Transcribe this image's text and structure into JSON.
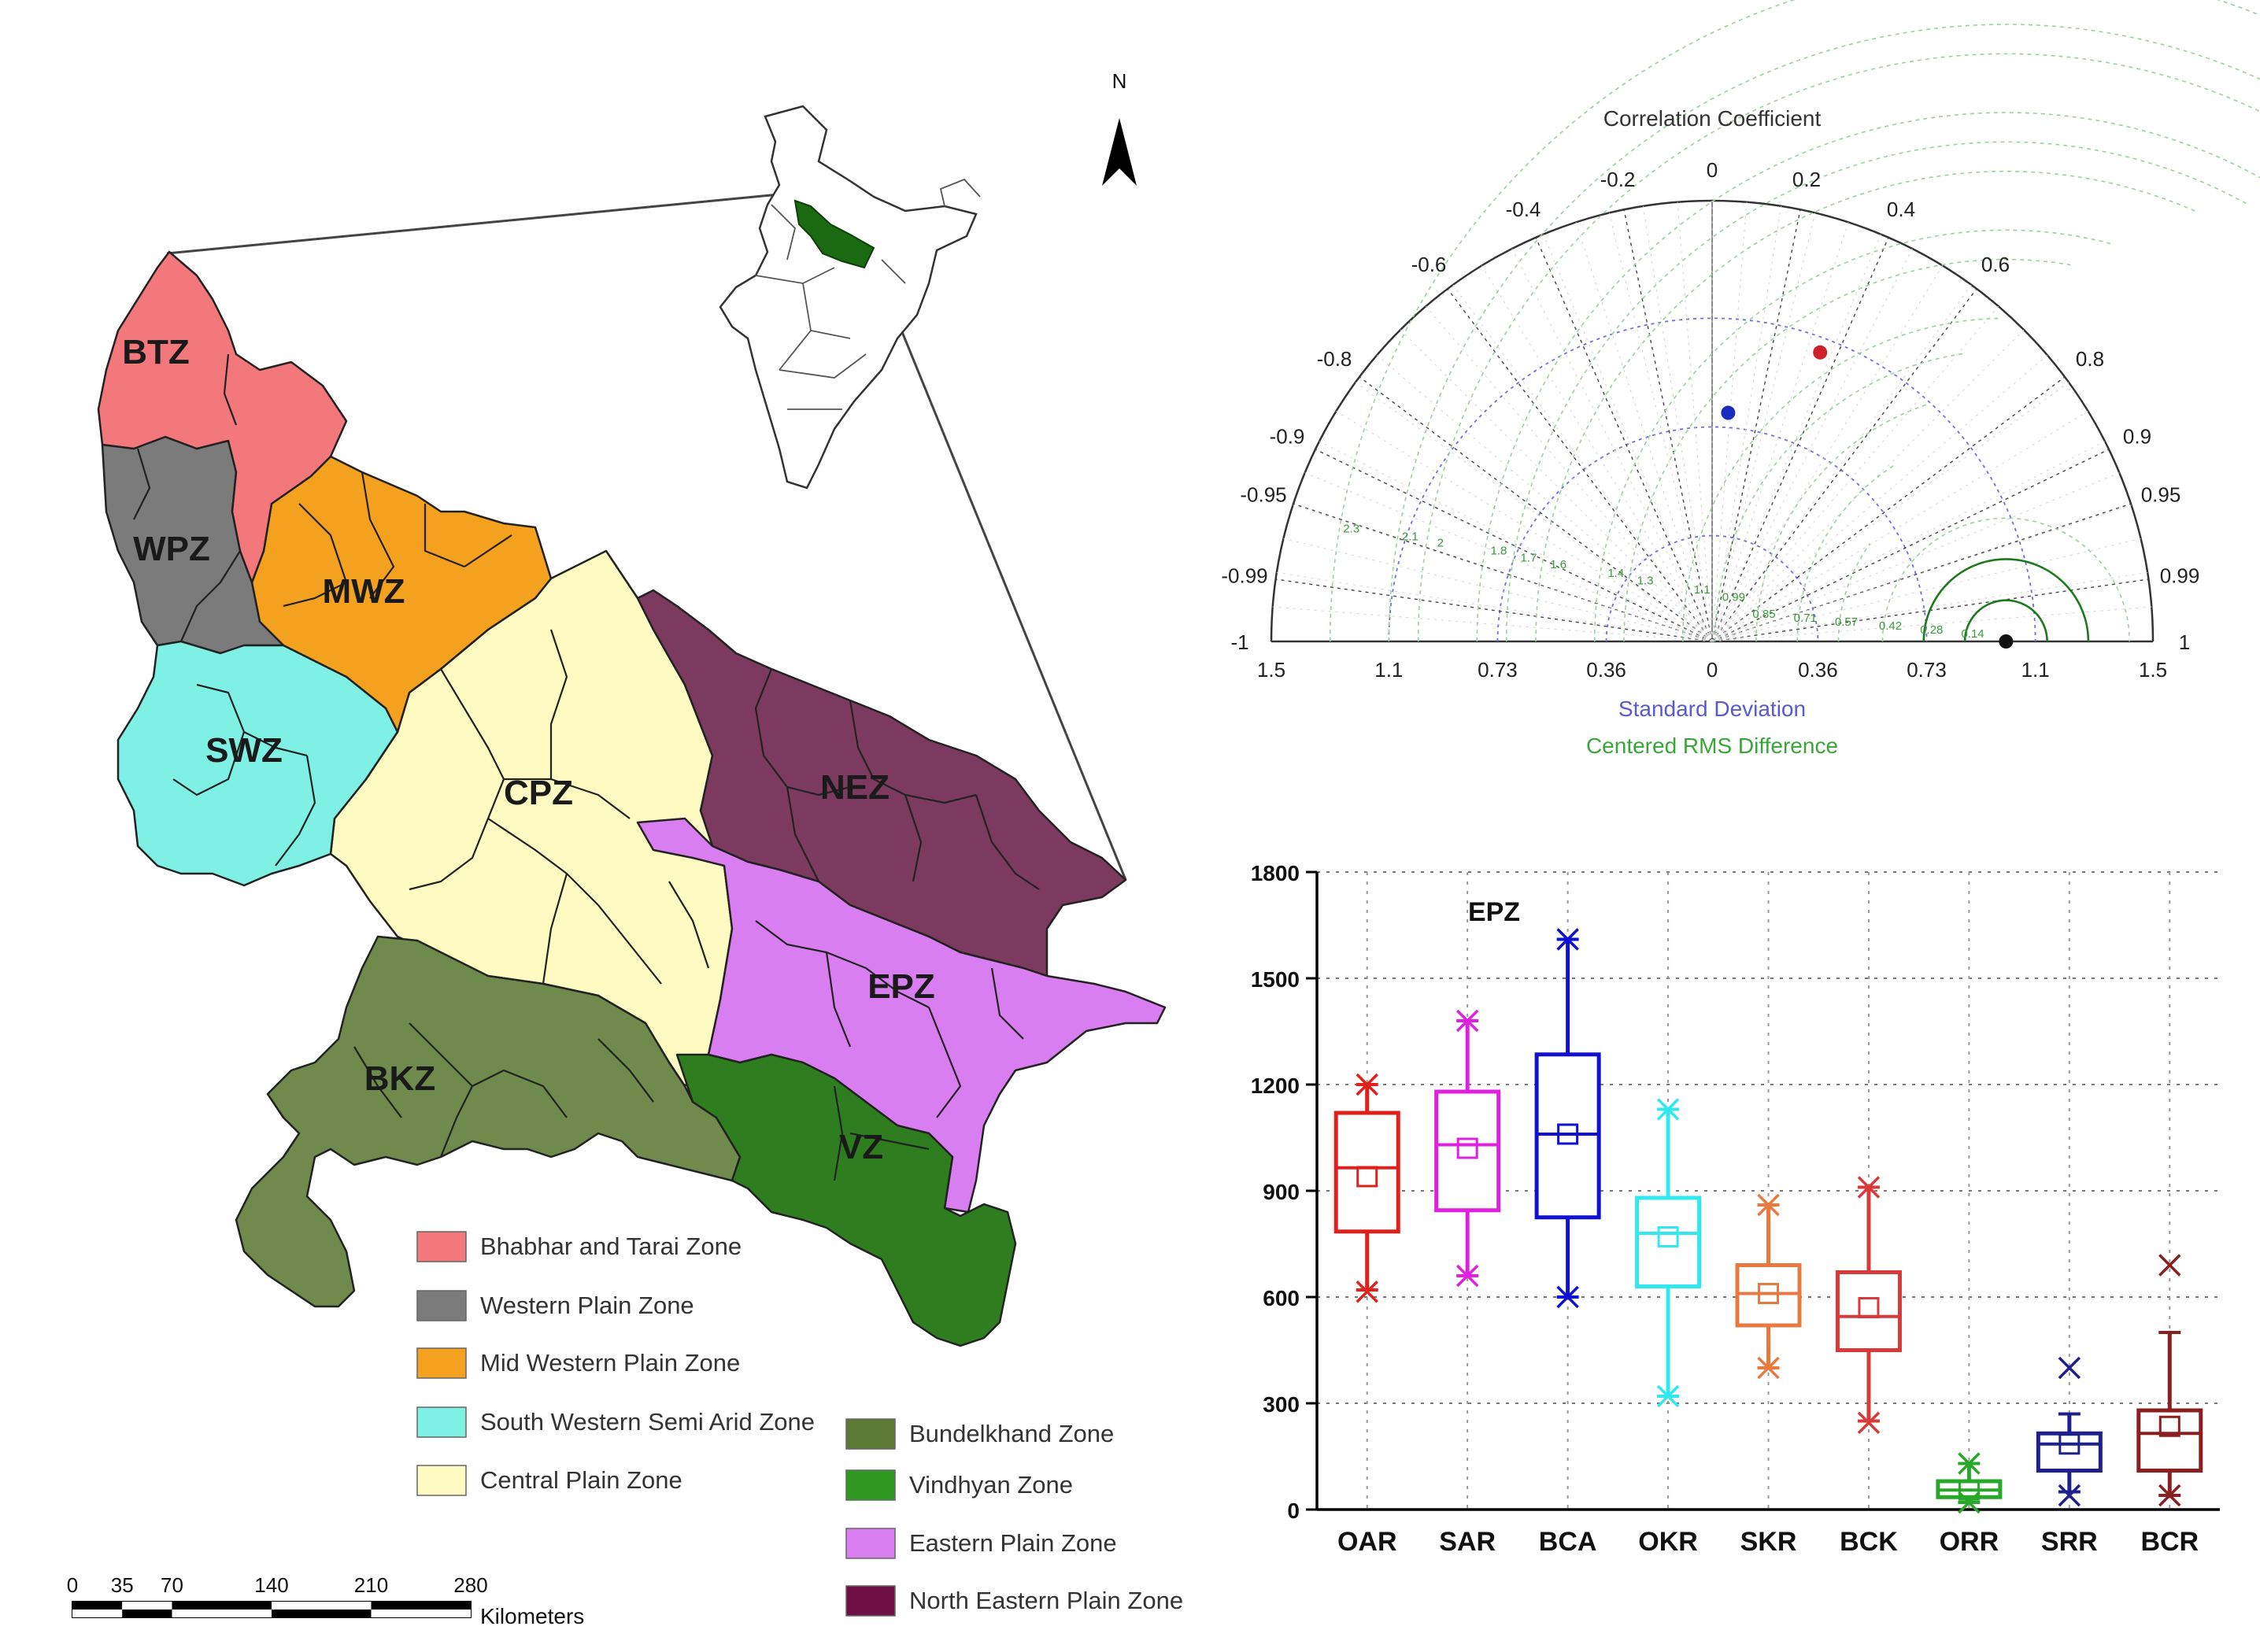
{
  "map": {
    "north_label": "N",
    "zone_labels": {
      "btz": "BTZ",
      "wpz": "WPZ",
      "mwz": "MWZ",
      "swz": "SWZ",
      "cpz": "CPZ",
      "nez": "NEZ",
      "epz": "EPZ",
      "bkz": "BKZ",
      "vz": "VZ"
    },
    "colors": {
      "btz": "#f2787c",
      "wpz": "#7b7b7b",
      "mwz": "#f4a11f",
      "swz": "#7ef0e4",
      "cpz": "#fdfbc2",
      "nez": "#7b3a5e",
      "epz": "#d97ef0",
      "bkz": "#6f8a4c",
      "vz": "#2e7d1f",
      "nez_legend": "#6d0f45"
    },
    "legend": [
      {
        "label": "Bhabhar and Tarai Zone",
        "color": "#f2787c"
      },
      {
        "label": "Western Plain Zone",
        "color": "#7b7b7b"
      },
      {
        "label": "Mid Western Plain Zone",
        "color": "#f4a11f"
      },
      {
        "label": "South Western Semi Arid Zone",
        "color": "#7ef0e4"
      },
      {
        "label": "Central Plain Zone",
        "color": "#fdfbc2"
      },
      {
        "label": "Bundelkhand Zone",
        "color": "#5d7a35"
      },
      {
        "label": "Vindhyan Zone",
        "color": "#2e9a1f"
      },
      {
        "label": "Eastern Plain Zone",
        "color": "#d97ef0"
      },
      {
        "label": "North Eastern Plain Zone",
        "color": "#6d0f45"
      }
    ],
    "scale_bar": {
      "ticks": [
        "0",
        "35",
        "70",
        "140",
        "210",
        "280"
      ],
      "unit": "Kilometers"
    }
  },
  "taylor": {
    "title": "Correlation Coefficient",
    "correlation_ticks_left": [
      "-0.2",
      "-0.4",
      "-0.6",
      "-0.8",
      "-0.9",
      "-0.95",
      "-0.99",
      "-1"
    ],
    "correlation_ticks_right": [
      "0",
      "0.2",
      "0.4",
      "0.6",
      "0.8",
      "0.9",
      "0.95",
      "0.99",
      "1"
    ],
    "std_ticks": [
      "1.5",
      "1.1",
      "0.73",
      "0.36",
      "0",
      "0.36",
      "0.73",
      "1.1",
      "1.5"
    ],
    "rms_ticks_left": [
      "2.3",
      "2.1",
      "2",
      "1.8",
      "1.7",
      "1.6",
      "1.4",
      "1.3",
      "1.1",
      "0.99"
    ],
    "rms_ticks_right": [
      "0.85",
      "0.71",
      "0.57",
      "0.42",
      "0.28",
      "0.14"
    ],
    "xlabel": "Standard Deviation",
    "rms_label": "Centered RMS Difference",
    "points": [
      {
        "name": "red",
        "corr": 0.35,
        "std": 1.05,
        "color": "#d0202a"
      },
      {
        "name": "blue",
        "corr": 0.07,
        "std": 0.78,
        "color": "#1a2cc0"
      },
      {
        "name": "reference",
        "corr": 1.0,
        "std": 1.0,
        "color": "#111111"
      }
    ]
  },
  "chart_data": {
    "type": "box",
    "title": "EPZ",
    "ylim": [
      0,
      1800
    ],
    "yticks": [
      "0",
      "300",
      "600",
      "900",
      "1200",
      "1500",
      "1800"
    ],
    "categories": [
      "OAR",
      "SAR",
      "BCA",
      "OKR",
      "SKR",
      "BCK",
      "ORR",
      "SRR",
      "BCR"
    ],
    "boxes": [
      {
        "name": "OAR",
        "color": "#e0201a",
        "min": 620,
        "q1": 785,
        "median": 965,
        "q3": 1120,
        "max": 1200,
        "mean": 940,
        "x_low": 615,
        "x_high": 1200
      },
      {
        "name": "SAR",
        "color": "#e020e0",
        "min": 660,
        "q1": 845,
        "median": 1030,
        "q3": 1180,
        "max": 1380,
        "mean": 1020,
        "x_low": 660,
        "x_high": 1380
      },
      {
        "name": "BCA",
        "color": "#1010d0",
        "min": 600,
        "q1": 825,
        "median": 1060,
        "q3": 1285,
        "max": 1610,
        "mean": 1060,
        "x_low": 600,
        "x_high": 1610
      },
      {
        "name": "OKR",
        "color": "#30e8f0",
        "min": 320,
        "q1": 630,
        "median": 780,
        "q3": 880,
        "max": 1130,
        "mean": 770,
        "x_low": 320,
        "x_high": 1130
      },
      {
        "name": "SKR",
        "color": "#e87a40",
        "min": 400,
        "q1": 520,
        "median": 610,
        "q3": 690,
        "max": 860,
        "mean": 610,
        "x_low": 400,
        "x_high": 860
      },
      {
        "name": "BCK",
        "color": "#d83a3a",
        "min": 250,
        "q1": 450,
        "median": 545,
        "q3": 670,
        "max": 910,
        "mean": 570,
        "x_low": 245,
        "x_high": 910
      },
      {
        "name": "ORR",
        "color": "#28a828",
        "min": 20,
        "q1": 35,
        "median": 55,
        "q3": 80,
        "max": 130,
        "mean": 55,
        "x_low": 20,
        "x_high": 130
      },
      {
        "name": "SRR",
        "color": "#20208a",
        "min": 50,
        "q1": 110,
        "median": 185,
        "q3": 215,
        "max": 270,
        "mean": 185,
        "x_low": 40,
        "x_high": 400
      },
      {
        "name": "BCR",
        "color": "#8a1f1f",
        "min": 40,
        "q1": 110,
        "median": 215,
        "q3": 280,
        "max": 500,
        "mean": 235,
        "x_low": 40,
        "x_high": 690
      }
    ]
  }
}
